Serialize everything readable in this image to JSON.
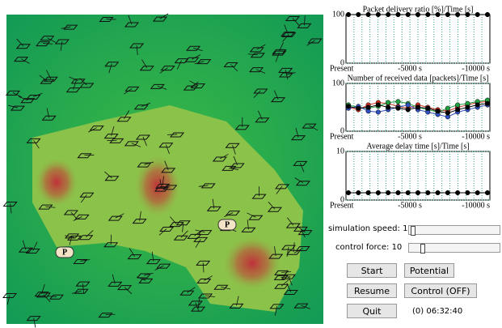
{
  "map": {
    "parking_labels": [
      "P",
      "P"
    ]
  },
  "charts": [
    {
      "type": "line",
      "title": "Packet delivery ratio [%]/Time [s]",
      "x_labels": [
        "Present",
        "-5000 s",
        "-10000 s"
      ],
      "ylim": [
        0,
        100
      ],
      "yticks": [
        0,
        100
      ],
      "series": [
        {
          "color": "#000000",
          "values": [
            100,
            100,
            100,
            100,
            100,
            100,
            100,
            100,
            100,
            100,
            100,
            100,
            100,
            100,
            100
          ]
        }
      ]
    },
    {
      "type": "line",
      "title": "Number of received data [packets]/Time [s]",
      "x_labels": [
        "Present",
        "-5000 s",
        "-10000 s"
      ],
      "ylim": [
        0,
        100
      ],
      "yticks": [
        0,
        100
      ],
      "series": [
        {
          "color": "#d03020",
          "values": [
            50,
            45,
            55,
            60,
            58,
            52,
            48,
            55,
            50,
            45,
            42,
            50,
            55,
            60,
            62
          ]
        },
        {
          "color": "#20a040",
          "values": [
            55,
            50,
            48,
            52,
            60,
            62,
            58,
            50,
            45,
            40,
            48,
            55,
            58,
            62,
            65
          ]
        },
        {
          "color": "#3050c0",
          "values": [
            48,
            52,
            42,
            40,
            45,
            50,
            55,
            45,
            40,
            35,
            30,
            40,
            45,
            50,
            55
          ]
        },
        {
          "color": "#000000",
          "values": [
            52,
            48,
            50,
            55,
            50,
            48,
            45,
            50,
            48,
            42,
            38,
            45,
            50,
            55,
            58
          ]
        }
      ]
    },
    {
      "type": "line",
      "title": "Average delay time [s]/Time [s]",
      "x_labels": [
        "Present",
        "-5000 s",
        "-10000 s"
      ],
      "ylim": [
        0,
        10
      ],
      "yticks": [
        0,
        10
      ],
      "series": [
        {
          "color": "#000000",
          "values": [
            1.5,
            1.5,
            1.5,
            1.5,
            1.5,
            1.5,
            1.5,
            1.5,
            1.5,
            1.5,
            1.5,
            1.5,
            1.5,
            1.5,
            1.5
          ]
        }
      ]
    }
  ],
  "controls": {
    "speed_label": "simulation speed: 10",
    "force_label": "control force: 10",
    "buttons": [
      "Start",
      "Potential",
      "Resume",
      "Control (OFF)",
      "Quit"
    ],
    "clock": "(0) 06:32:40"
  }
}
